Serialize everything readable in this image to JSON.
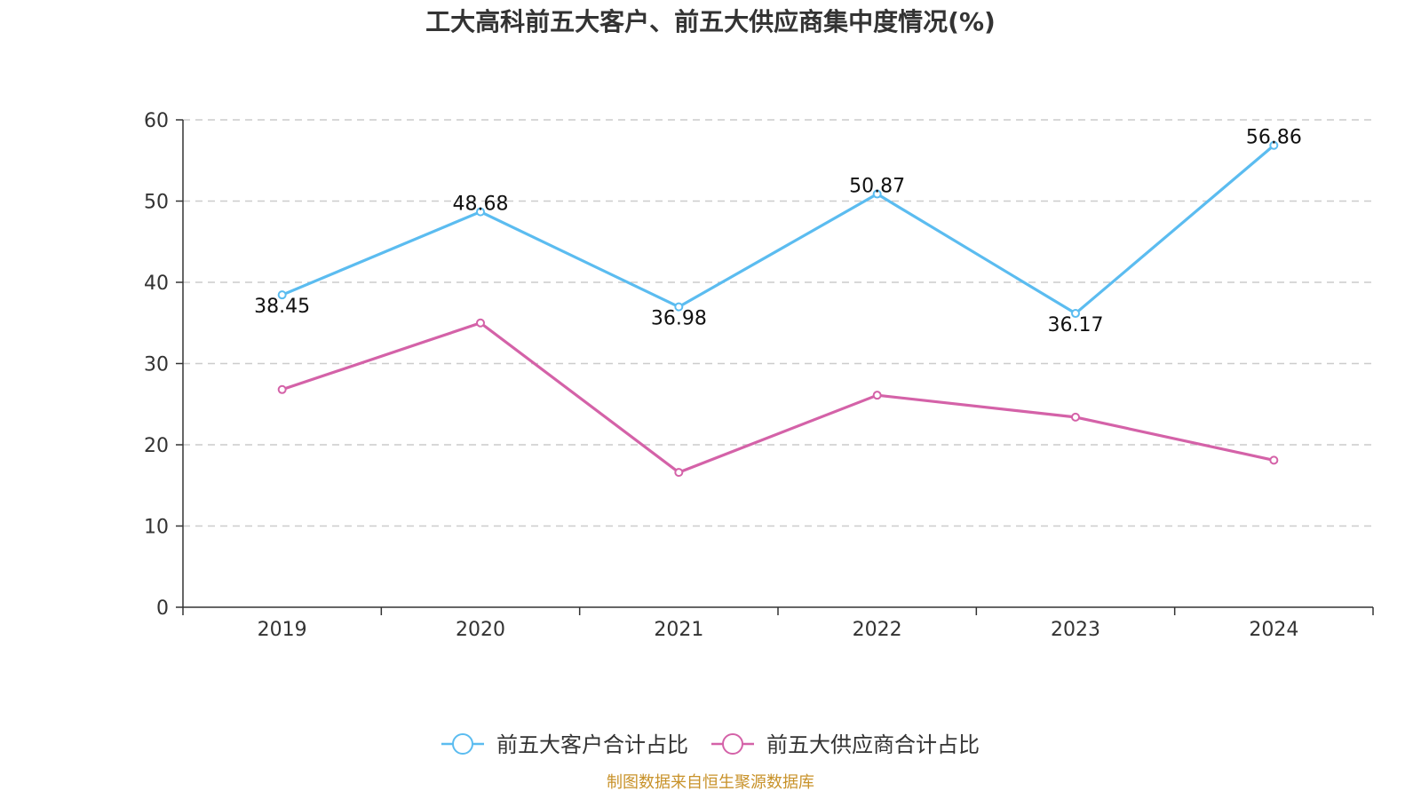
{
  "chart_data": {
    "type": "line",
    "title": "工大高科前五大客户、前五大供应商集中度情况(%)",
    "categories": [
      "2019",
      "2020",
      "2021",
      "2022",
      "2023",
      "2024"
    ],
    "ylim": [
      0,
      60
    ],
    "yticks": [
      0,
      10,
      20,
      30,
      40,
      50,
      60
    ],
    "grid": true,
    "legend_position": "bottom-center",
    "series": [
      {
        "name": "前五大客户合计占比",
        "color": "#5bbcf0",
        "values": [
          38.45,
          48.68,
          36.98,
          50.87,
          36.17,
          56.86
        ],
        "labels": [
          "38.45",
          "48.68",
          "36.98",
          "50.87",
          "36.17",
          "56.86"
        ],
        "label_positions": [
          "below",
          "above",
          "below",
          "above",
          "below",
          "above"
        ]
      },
      {
        "name": "前五大供应商合计占比",
        "color": "#d462a8",
        "values": [
          26.8,
          35.0,
          16.6,
          26.1,
          23.4,
          18.1
        ]
      }
    ]
  },
  "source": "制图数据来自恒生聚源数据库"
}
